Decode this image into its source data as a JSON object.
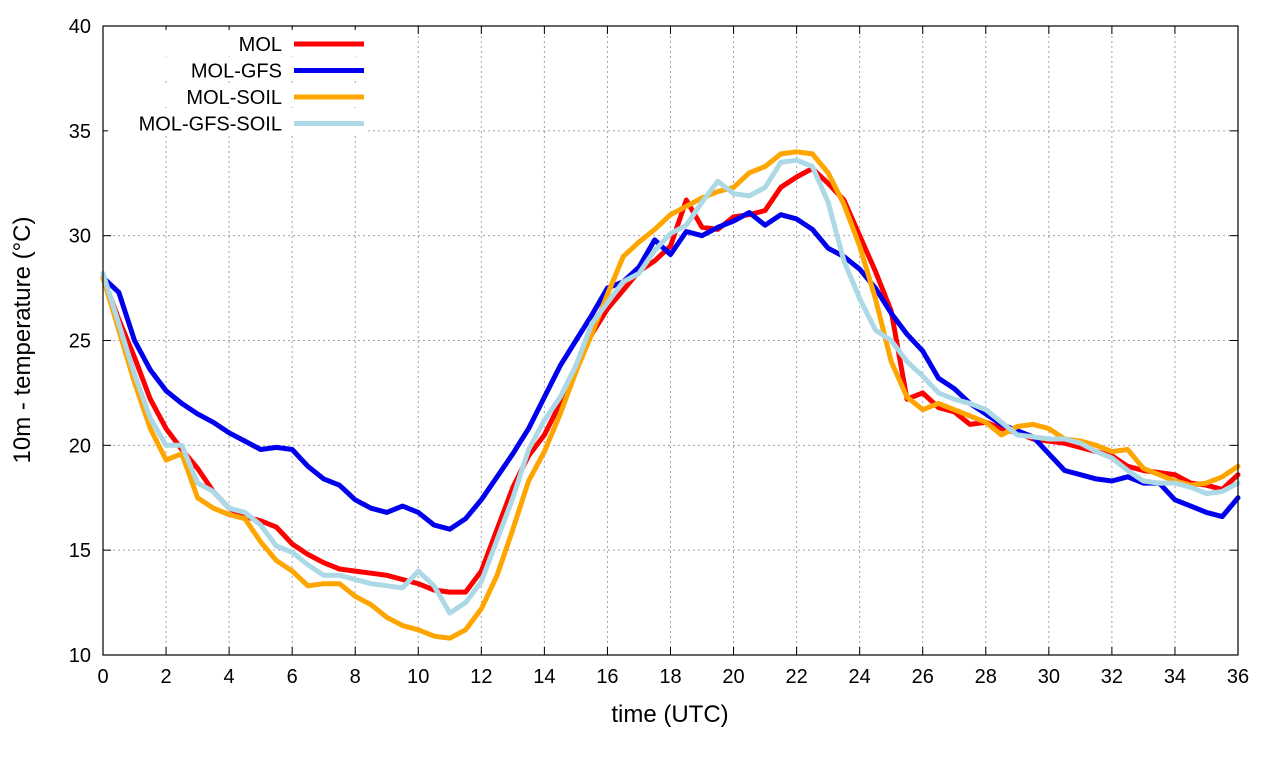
{
  "chart_data": {
    "type": "line",
    "xlabel": "time (UTC)",
    "ylabel": "10m - temperature (°C)",
    "xlim": [
      0,
      36
    ],
    "ylim": [
      10,
      40
    ],
    "xticks": [
      0,
      2,
      4,
      6,
      8,
      10,
      12,
      14,
      16,
      18,
      20,
      22,
      24,
      26,
      28,
      30,
      32,
      34,
      36
    ],
    "yticks": [
      10,
      15,
      20,
      25,
      30,
      35,
      40
    ],
    "grid": true,
    "legend_position": "top-left",
    "series": [
      {
        "name": "MOL",
        "color": "#ff0000",
        "points": [
          [
            0,
            28.0
          ],
          [
            0.5,
            26.0
          ],
          [
            1,
            24.2
          ],
          [
            1.5,
            22.2
          ],
          [
            2,
            20.8
          ],
          [
            2.5,
            19.8
          ],
          [
            3,
            18.9
          ],
          [
            3.5,
            17.8
          ],
          [
            4,
            17.0
          ],
          [
            4.5,
            16.6
          ],
          [
            5,
            16.4
          ],
          [
            5.5,
            16.1
          ],
          [
            6,
            15.3
          ],
          [
            6.5,
            14.8
          ],
          [
            7,
            14.4
          ],
          [
            7.5,
            14.1
          ],
          [
            8,
            14.0
          ],
          [
            8.5,
            13.9
          ],
          [
            9,
            13.8
          ],
          [
            9.5,
            13.6
          ],
          [
            10,
            13.4
          ],
          [
            10.5,
            13.1
          ],
          [
            11,
            13.0
          ],
          [
            11.5,
            13.0
          ],
          [
            12,
            14.0
          ],
          [
            12.5,
            16.0
          ],
          [
            13,
            18.0
          ],
          [
            13.5,
            19.5
          ],
          [
            14,
            20.5
          ],
          [
            14.5,
            22.0
          ],
          [
            15,
            23.8
          ],
          [
            15.5,
            25.3
          ],
          [
            16,
            26.5
          ],
          [
            16.5,
            27.4
          ],
          [
            17,
            28.3
          ],
          [
            17.5,
            28.8
          ],
          [
            18,
            29.5
          ],
          [
            18.5,
            31.7
          ],
          [
            19,
            30.4
          ],
          [
            19.5,
            30.3
          ],
          [
            20,
            30.9
          ],
          [
            20.5,
            31.0
          ],
          [
            21,
            31.2
          ],
          [
            21.5,
            32.3
          ],
          [
            22,
            32.8
          ],
          [
            22.5,
            33.2
          ],
          [
            23,
            32.5
          ],
          [
            23.5,
            31.7
          ],
          [
            24,
            30.0
          ],
          [
            24.5,
            28.3
          ],
          [
            25,
            26.4
          ],
          [
            25.5,
            22.2
          ],
          [
            26,
            22.5
          ],
          [
            26.5,
            21.8
          ],
          [
            27,
            21.6
          ],
          [
            27.5,
            21.0
          ],
          [
            28,
            21.1
          ],
          [
            28.5,
            20.8
          ],
          [
            29,
            20.6
          ],
          [
            29.5,
            20.3
          ],
          [
            30,
            20.2
          ],
          [
            30.5,
            20.1
          ],
          [
            31,
            19.9
          ],
          [
            31.5,
            19.7
          ],
          [
            32,
            19.5
          ],
          [
            32.5,
            19.0
          ],
          [
            33,
            18.8
          ],
          [
            33.5,
            18.7
          ],
          [
            34,
            18.6
          ],
          [
            34.5,
            18.2
          ],
          [
            35,
            18.1
          ],
          [
            35.5,
            17.9
          ],
          [
            36,
            18.6
          ]
        ]
      },
      {
        "name": "MOL-GFS",
        "color": "#0000ee",
        "points": [
          [
            0,
            28.0
          ],
          [
            0.5,
            27.3
          ],
          [
            1,
            25.0
          ],
          [
            1.5,
            23.6
          ],
          [
            2,
            22.6
          ],
          [
            2.5,
            22.0
          ],
          [
            3,
            21.5
          ],
          [
            3.5,
            21.1
          ],
          [
            4,
            20.6
          ],
          [
            4.5,
            20.2
          ],
          [
            5,
            19.8
          ],
          [
            5.5,
            19.9
          ],
          [
            6,
            19.8
          ],
          [
            6.5,
            19.0
          ],
          [
            7,
            18.4
          ],
          [
            7.5,
            18.1
          ],
          [
            8,
            17.4
          ],
          [
            8.5,
            17.0
          ],
          [
            9,
            16.8
          ],
          [
            9.5,
            17.1
          ],
          [
            10,
            16.8
          ],
          [
            10.5,
            16.2
          ],
          [
            11,
            16.0
          ],
          [
            11.5,
            16.5
          ],
          [
            12,
            17.4
          ],
          [
            12.5,
            18.5
          ],
          [
            13,
            19.6
          ],
          [
            13.5,
            20.8
          ],
          [
            14,
            22.3
          ],
          [
            14.5,
            23.8
          ],
          [
            15,
            25.0
          ],
          [
            15.5,
            26.2
          ],
          [
            16,
            27.5
          ],
          [
            16.5,
            27.8
          ],
          [
            17,
            28.5
          ],
          [
            17.5,
            29.8
          ],
          [
            18,
            29.1
          ],
          [
            18.5,
            30.2
          ],
          [
            19,
            30.0
          ],
          [
            19.5,
            30.4
          ],
          [
            20,
            30.7
          ],
          [
            20.5,
            31.1
          ],
          [
            21,
            30.5
          ],
          [
            21.5,
            31.0
          ],
          [
            22,
            30.8
          ],
          [
            22.5,
            30.3
          ],
          [
            23,
            29.4
          ],
          [
            23.5,
            29.0
          ],
          [
            24,
            28.4
          ],
          [
            24.5,
            27.5
          ],
          [
            25,
            26.3
          ],
          [
            25.5,
            25.3
          ],
          [
            26,
            24.5
          ],
          [
            26.5,
            23.2
          ],
          [
            27,
            22.7
          ],
          [
            27.5,
            22.0
          ],
          [
            28,
            21.5
          ],
          [
            28.5,
            21.0
          ],
          [
            29,
            20.7
          ],
          [
            29.5,
            20.4
          ],
          [
            30,
            19.6
          ],
          [
            30.5,
            18.8
          ],
          [
            31,
            18.6
          ],
          [
            31.5,
            18.4
          ],
          [
            32,
            18.3
          ],
          [
            32.5,
            18.5
          ],
          [
            33,
            18.2
          ],
          [
            33.5,
            18.2
          ],
          [
            34,
            17.4
          ],
          [
            34.5,
            17.1
          ],
          [
            35,
            16.8
          ],
          [
            35.5,
            16.6
          ],
          [
            36,
            17.5
          ]
        ]
      },
      {
        "name": "MOL-SOIL",
        "color": "#ffa500",
        "points": [
          [
            0,
            28.0
          ],
          [
            0.5,
            25.5
          ],
          [
            1,
            23.0
          ],
          [
            1.5,
            20.8
          ],
          [
            2,
            19.3
          ],
          [
            2.5,
            19.6
          ],
          [
            3,
            17.5
          ],
          [
            3.5,
            17.0
          ],
          [
            4,
            16.7
          ],
          [
            4.5,
            16.5
          ],
          [
            5,
            15.4
          ],
          [
            5.5,
            14.5
          ],
          [
            6,
            14.0
          ],
          [
            6.5,
            13.3
          ],
          [
            7,
            13.4
          ],
          [
            7.5,
            13.4
          ],
          [
            8,
            12.8
          ],
          [
            8.5,
            12.4
          ],
          [
            9,
            11.8
          ],
          [
            9.5,
            11.4
          ],
          [
            10,
            11.2
          ],
          [
            10.5,
            10.9
          ],
          [
            11,
            10.8
          ],
          [
            11.5,
            11.2
          ],
          [
            12,
            12.2
          ],
          [
            12.5,
            13.8
          ],
          [
            13,
            16.0
          ],
          [
            13.5,
            18.3
          ],
          [
            14,
            19.7
          ],
          [
            14.5,
            21.5
          ],
          [
            15,
            23.5
          ],
          [
            15.5,
            25.3
          ],
          [
            16,
            27.2
          ],
          [
            16.5,
            29.0
          ],
          [
            17,
            29.7
          ],
          [
            17.5,
            30.3
          ],
          [
            18,
            31.0
          ],
          [
            18.5,
            31.4
          ],
          [
            19,
            31.8
          ],
          [
            19.5,
            32.1
          ],
          [
            20,
            32.3
          ],
          [
            20.5,
            33.0
          ],
          [
            21,
            33.3
          ],
          [
            21.5,
            33.9
          ],
          [
            22,
            34.0
          ],
          [
            22.5,
            33.9
          ],
          [
            23,
            33.0
          ],
          [
            23.5,
            31.5
          ],
          [
            24,
            29.5
          ],
          [
            24.5,
            27.0
          ],
          [
            25,
            24.0
          ],
          [
            25.5,
            22.3
          ],
          [
            26,
            21.7
          ],
          [
            26.5,
            22.0
          ],
          [
            27,
            21.7
          ],
          [
            27.5,
            21.4
          ],
          [
            28,
            21.1
          ],
          [
            28.5,
            20.5
          ],
          [
            29,
            20.9
          ],
          [
            29.5,
            21.0
          ],
          [
            30,
            20.8
          ],
          [
            30.5,
            20.3
          ],
          [
            31,
            20.2
          ],
          [
            31.5,
            20.0
          ],
          [
            32,
            19.7
          ],
          [
            32.5,
            19.8
          ],
          [
            33,
            18.9
          ],
          [
            33.5,
            18.6
          ],
          [
            34,
            18.3
          ],
          [
            34.5,
            18.1
          ],
          [
            35,
            18.2
          ],
          [
            35.5,
            18.5
          ],
          [
            36,
            19.0
          ]
        ]
      },
      {
        "name": "MOL-GFS-SOIL",
        "color": "#add8e6",
        "points": [
          [
            0,
            28.2
          ],
          [
            0.5,
            25.8
          ],
          [
            1,
            23.4
          ],
          [
            1.5,
            21.3
          ],
          [
            2,
            20.0
          ],
          [
            2.5,
            20.0
          ],
          [
            3,
            18.2
          ],
          [
            3.5,
            17.8
          ],
          [
            4,
            17.0
          ],
          [
            4.5,
            16.8
          ],
          [
            5,
            16.2
          ],
          [
            5.5,
            15.2
          ],
          [
            6,
            14.9
          ],
          [
            6.5,
            14.3
          ],
          [
            7,
            13.8
          ],
          [
            7.5,
            13.8
          ],
          [
            8,
            13.6
          ],
          [
            8.5,
            13.4
          ],
          [
            9,
            13.3
          ],
          [
            9.5,
            13.2
          ],
          [
            10,
            14.0
          ],
          [
            10.5,
            13.3
          ],
          [
            11,
            12.0
          ],
          [
            11.5,
            12.5
          ],
          [
            12,
            13.5
          ],
          [
            12.5,
            15.5
          ],
          [
            13,
            17.5
          ],
          [
            13.5,
            19.8
          ],
          [
            14,
            21.2
          ],
          [
            14.5,
            22.3
          ],
          [
            15,
            23.8
          ],
          [
            15.5,
            25.8
          ],
          [
            16,
            26.8
          ],
          [
            16.5,
            27.8
          ],
          [
            17,
            28.2
          ],
          [
            17.5,
            29.3
          ],
          [
            18,
            30.1
          ],
          [
            18.5,
            30.5
          ],
          [
            19,
            31.6
          ],
          [
            19.5,
            32.6
          ],
          [
            20,
            32.0
          ],
          [
            20.5,
            31.9
          ],
          [
            21,
            32.3
          ],
          [
            21.5,
            33.5
          ],
          [
            22,
            33.6
          ],
          [
            22.5,
            33.3
          ],
          [
            23,
            31.6
          ],
          [
            23.5,
            28.8
          ],
          [
            24,
            27.0
          ],
          [
            24.5,
            25.5
          ],
          [
            25,
            25.0
          ],
          [
            25.5,
            24.0
          ],
          [
            26,
            23.3
          ],
          [
            26.5,
            22.5
          ],
          [
            27,
            22.2
          ],
          [
            27.5,
            22.0
          ],
          [
            28,
            21.7
          ],
          [
            28.5,
            21.1
          ],
          [
            29,
            20.5
          ],
          [
            29.5,
            20.4
          ],
          [
            30,
            20.3
          ],
          [
            30.5,
            20.3
          ],
          [
            31,
            20.1
          ],
          [
            31.5,
            19.7
          ],
          [
            32,
            19.4
          ],
          [
            32.5,
            18.8
          ],
          [
            33,
            18.3
          ],
          [
            33.5,
            18.2
          ],
          [
            34,
            18.2
          ],
          [
            34.5,
            18.0
          ],
          [
            35,
            17.7
          ],
          [
            35.5,
            17.8
          ],
          [
            36,
            18.2
          ]
        ]
      }
    ]
  }
}
